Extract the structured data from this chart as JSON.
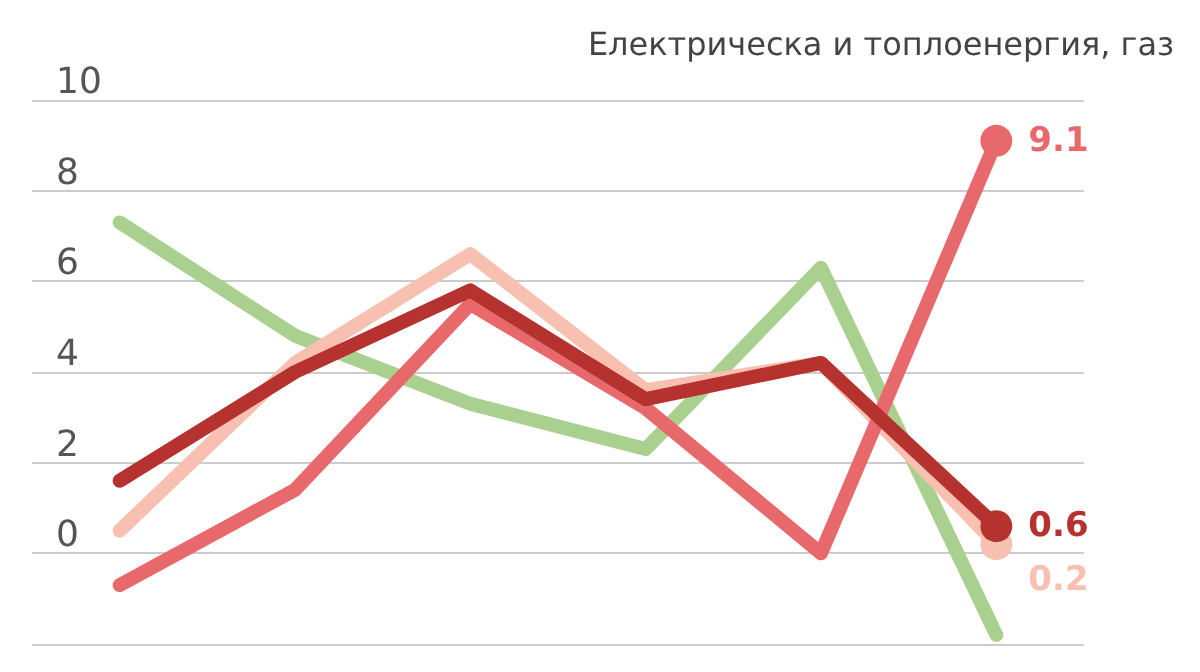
{
  "chart_data": {
    "type": "line",
    "categories": [
      null,
      null,
      null,
      null,
      null,
      null
    ],
    "series": [
      {
        "name": "Електрическа и топлоенергия, газ",
        "color": "#a9d08e",
        "values": [
          7.3,
          4.8,
          3.3,
          2.3,
          6.3,
          -1.8
        ]
      },
      {
        "color": "#f8c0b0",
        "values": [
          0.5,
          4.2,
          6.6,
          3.6,
          4.2,
          0.2
        ],
        "value_labels": [
          null,
          null,
          null,
          null,
          null,
          "0.2"
        ]
      },
      {
        "color": "#e8696b",
        "values": [
          -0.7,
          1.4,
          5.5,
          3.2,
          0.0,
          9.1
        ],
        "value_labels": [
          null,
          null,
          null,
          null,
          null,
          "9.1"
        ]
      },
      {
        "color": "#b5322e",
        "values": [
          1.6,
          4.0,
          5.8,
          3.4,
          4.2,
          0.6
        ],
        "value_labels": [
          null,
          null,
          null,
          null,
          null,
          "0.6"
        ]
      }
    ],
    "ylim": [
      -2,
      10
    ],
    "yticks": [
      {
        "value": -2,
        "label": null
      },
      0,
      2,
      4,
      6,
      8,
      10
    ],
    "grid": "y",
    "legend": "top right",
    "tick_labels": "y"
  }
}
